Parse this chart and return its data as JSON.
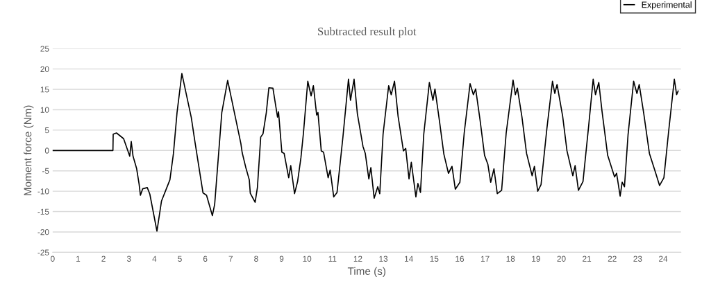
{
  "chart_data": {
    "type": "line",
    "title": "Subtracted result plot",
    "xlabel": "Time (s)",
    "ylabel": "Moment force (Nm)",
    "xlim": [
      0,
      24.7
    ],
    "xticks": [
      0,
      1,
      2,
      3,
      4,
      5,
      6,
      7,
      8,
      9,
      10,
      11,
      12,
      13,
      14,
      15,
      16,
      17,
      18,
      19,
      20,
      21,
      22,
      23,
      24
    ],
    "ylim": [
      -25,
      25
    ],
    "yticks": [
      -25,
      -20,
      -15,
      -10,
      -5,
      0,
      5,
      10,
      15,
      20,
      25
    ],
    "grid": "y",
    "legend": "top right",
    "marker": "none",
    "line_style": "solid",
    "series": [
      {
        "name": "Experimental",
        "color": "#000000",
        "x": [
          0,
          2.37,
          2.38,
          2.51,
          2.79,
          3.03,
          3.09,
          3.16,
          3.3,
          3.4,
          3.45,
          3.54,
          3.72,
          3.82,
          4.1,
          4.28,
          4.47,
          4.61,
          4.75,
          4.89,
          5.08,
          5.45,
          5.59,
          5.91,
          6.05,
          6.28,
          6.37,
          6.65,
          6.88,
          7.4,
          7.45,
          7.59,
          7.73,
          7.77,
          7.96,
          8.05,
          8.18,
          8.27,
          8.4,
          8.5,
          8.66,
          8.84,
          8.88,
          9.01,
          9.1,
          9.28,
          9.36,
          9.51,
          9.63,
          9.76,
          9.86,
          10.03,
          10.16,
          10.25,
          10.38,
          10.43,
          10.56,
          10.65,
          10.83,
          10.91,
          11.05,
          11.18,
          11.41,
          11.63,
          11.71,
          11.85,
          11.98,
          12.2,
          12.29,
          12.43,
          12.51,
          12.64,
          12.78,
          12.86,
          12.99,
          13.21,
          13.31,
          13.44,
          13.58,
          13.79,
          13.88,
          14.01,
          14.1,
          14.28,
          14.36,
          14.46,
          14.59,
          14.81,
          14.95,
          15.03,
          15.21,
          15.38,
          15.56,
          15.7,
          15.83,
          16.01,
          16.18,
          16.41,
          16.54,
          16.63,
          16.8,
          16.98,
          17.11,
          17.22,
          17.35,
          17.48,
          17.65,
          17.83,
          18.1,
          18.19,
          18.27,
          18.45,
          18.63,
          18.85,
          18.94,
          19.07,
          19.2,
          19.43,
          19.65,
          19.74,
          19.83,
          20.05,
          20.22,
          20.45,
          20.54,
          20.67,
          20.85,
          21.07,
          21.25,
          21.34,
          21.47,
          21.6,
          21.82,
          22.09,
          22.17,
          22.31,
          22.39,
          22.48,
          22.62,
          22.84,
          22.97,
          23.06,
          23.24,
          23.46,
          23.68,
          23.86,
          24.03,
          24.21,
          24.44,
          24.53,
          24.59
        ],
        "values": [
          0,
          0,
          4.0,
          4.3,
          2.9,
          -1.4,
          2.2,
          -1.4,
          -4.4,
          -8.3,
          -11,
          -9.4,
          -9.1,
          -10.7,
          -19.8,
          -12.4,
          -9.4,
          -7.2,
          -0.7,
          9.3,
          18.9,
          8.1,
          2.3,
          -10.4,
          -11,
          -16,
          -13.2,
          9.3,
          17.2,
          1.7,
          -0.5,
          -4.1,
          -7.2,
          -10.5,
          -12.7,
          -9.1,
          3.3,
          4.1,
          9.3,
          15.4,
          15.3,
          8.2,
          9.5,
          -0.4,
          -0.7,
          -6.7,
          -3.7,
          -10.6,
          -7.6,
          -1.8,
          4.3,
          17.0,
          13.4,
          15.9,
          8.7,
          9.3,
          -0.1,
          -0.4,
          -6.7,
          -4.8,
          -11.4,
          -10.3,
          3.2,
          17.5,
          12.3,
          17.5,
          9.0,
          1.0,
          -0.7,
          -7.0,
          -4.2,
          -11.7,
          -8.9,
          -10.6,
          4.0,
          15.9,
          13.7,
          17.0,
          8.4,
          -0.1,
          0.5,
          -7.0,
          -2.9,
          -11.4,
          -8.1,
          -10.3,
          4.0,
          16.7,
          12.3,
          15.1,
          7.1,
          -0.9,
          -5.6,
          -3.9,
          -9.5,
          -7.8,
          4.3,
          16.4,
          13.7,
          15.1,
          7.6,
          -1.2,
          -3.4,
          -7.8,
          -4.5,
          -10.6,
          -9.8,
          4.3,
          17.3,
          13.7,
          15.3,
          8.2,
          -0.7,
          -6.2,
          -3.9,
          -10.0,
          -8.4,
          5.4,
          17.0,
          14.0,
          16.2,
          8.4,
          -0.1,
          -6.2,
          -3.7,
          -9.8,
          -7.6,
          5.9,
          17.5,
          13.7,
          16.7,
          9.5,
          -1.2,
          -6.5,
          -5.6,
          -11.2,
          -7.8,
          -8.9,
          3.8,
          17.0,
          14.0,
          16.2,
          9.0,
          -0.7,
          -5.0,
          -8.6,
          -6.7,
          4.3,
          17.5,
          13.7,
          14.6
        ]
      }
    ]
  }
}
